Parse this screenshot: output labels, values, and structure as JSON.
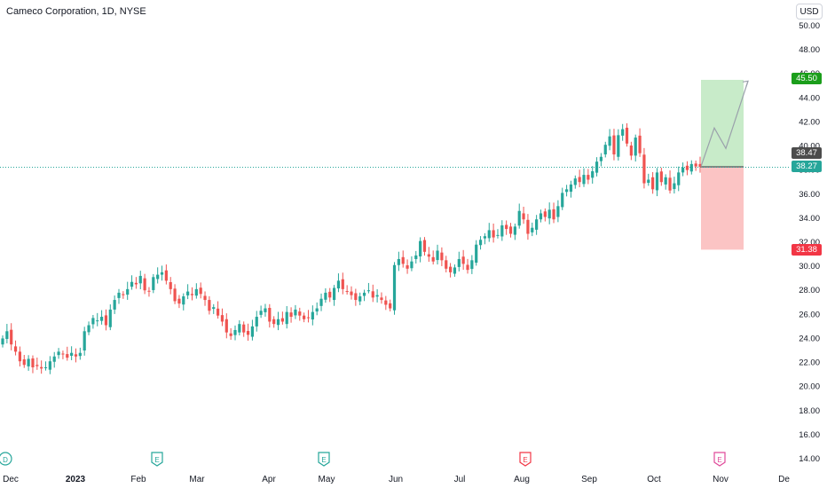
{
  "header": {
    "title": "Cameco Corporation, 1D, NYSE",
    "currency_button": "USD"
  },
  "colors": {
    "up": "#26a69a",
    "down": "#ef5350",
    "target_zone": "#c8ebc9",
    "stop_zone": "#fbc4c4",
    "target_label": "#1b9e1b",
    "stop_label": "#f23645",
    "current_label": "#26a69a",
    "avg_label": "#4c4c4c",
    "price_line": "#26a69a",
    "projection": "#9aa0ab",
    "earnings_past": "#26a69a",
    "earnings_future": "#f23645",
    "future_icon": "#e04a9a"
  },
  "chart_data": {
    "type": "candlestick",
    "title": "Cameco Corporation, 1D, NYSE",
    "currency": "USD",
    "y_axis_ticks": [
      "14.00",
      "16.00",
      "18.00",
      "20.00",
      "22.00",
      "24.00",
      "26.00",
      "28.00",
      "30.00",
      "32.00",
      "34.00",
      "36.00",
      "38.00",
      "40.00",
      "42.00",
      "44.00",
      "46.00",
      "48.00",
      "50.00"
    ],
    "ylim": [
      13.5,
      51
    ],
    "x_axis_ticks": [
      "Dec",
      "2023",
      "Feb",
      "Mar",
      "Apr",
      "May",
      "Jun",
      "Jul",
      "Aug",
      "Sep",
      "Oct",
      "Nov",
      "Dec"
    ],
    "price_labels": {
      "target": "45.50",
      "average": "38.47",
      "current": "38.27",
      "stop": "31.38"
    },
    "position": {
      "entry": 38.27,
      "target": 45.5,
      "stop": 31.38
    },
    "projection_path": [
      38.3,
      41.5,
      39.8,
      45.4
    ],
    "events": [
      {
        "label": "D",
        "type": "dividend"
      },
      {
        "label": "E",
        "type": "earnings"
      },
      {
        "label": "E",
        "type": "earnings"
      },
      {
        "label": "E",
        "type": "earnings"
      },
      {
        "label": "E",
        "type": "earnings-upcoming"
      }
    ],
    "closes": [
      24.0,
      24.6,
      23.5,
      22.9,
      22.1,
      21.8,
      22.3,
      21.6,
      21.7,
      21.5,
      21.6,
      22.1,
      22.5,
      22.9,
      22.7,
      22.4,
      22.8,
      22.5,
      22.8,
      24.6,
      25.1,
      25.7,
      25.5,
      25.8,
      25.1,
      26.4,
      27.2,
      27.8,
      27.6,
      28.1,
      28.7,
      28.5,
      29.2,
      28.0,
      27.9,
      29.1,
      29.3,
      29.5,
      28.8,
      28.1,
      27.1,
      26.9,
      27.5,
      27.9,
      27.6,
      28.1,
      27.7,
      27.2,
      26.3,
      26.6,
      25.9,
      25.4,
      24.5,
      24.2,
      24.7,
      25.2,
      24.5,
      24.3,
      25.0,
      25.8,
      26.3,
      26.5,
      25.4,
      25.2,
      25.6,
      25.4,
      26.2,
      25.8,
      26.4,
      25.9,
      25.6,
      25.7,
      26.2,
      26.5,
      27.3,
      27.8,
      27.4,
      28.2,
      28.8,
      28.1,
      27.9,
      27.6,
      27.2,
      27.5,
      27.8,
      28.0,
      27.4,
      27.6,
      27.2,
      26.8,
      26.5,
      30.1,
      30.6,
      30.2,
      29.8,
      30.4,
      30.9,
      32.1,
      31.2,
      30.8,
      30.4,
      31.3,
      30.5,
      29.8,
      29.5,
      29.9,
      30.6,
      30.2,
      29.7,
      30.5,
      31.8,
      32.2,
      32.5,
      33.0,
      32.4,
      32.6,
      33.4,
      33.1,
      32.7,
      33.3,
      34.6,
      33.9,
      32.7,
      33.2,
      33.9,
      34.4,
      34.1,
      34.7,
      33.9,
      35.0,
      36.1,
      36.4,
      36.8,
      37.3,
      37.0,
      37.6,
      37.2,
      37.9,
      38.7,
      39.1,
      40.1,
      40.8,
      39.3,
      40.9,
      41.4,
      40.2,
      39.2,
      40.7,
      39.4,
      36.9,
      37.2,
      36.4,
      37.8,
      37.0,
      37.4,
      36.3,
      36.9,
      37.8,
      38.2,
      38.0,
      38.5,
      38.3,
      38.27
    ]
  }
}
